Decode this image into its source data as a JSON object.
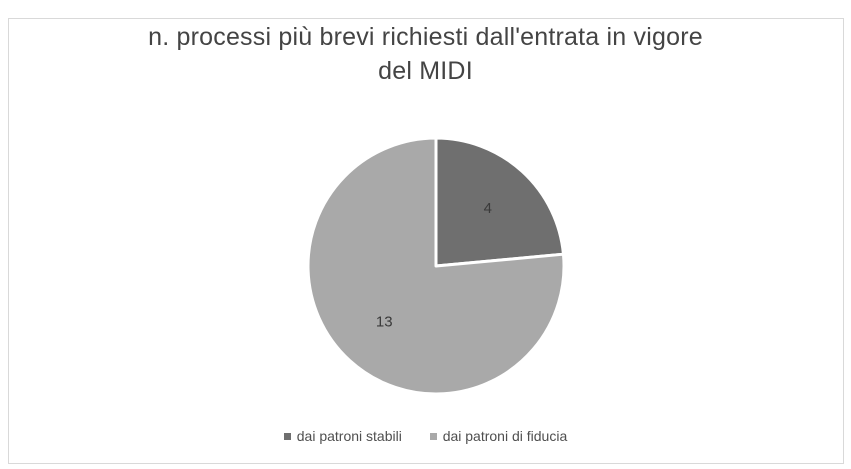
{
  "chart_data": {
    "type": "pie",
    "title_lines": [
      "n. processi più brevi richiesti dall'entrata in vigore",
      "del MIDI"
    ],
    "slices": [
      {
        "label": "dai patroni stabili",
        "value": 4,
        "data_label": "4",
        "color": "#6f6f6f"
      },
      {
        "label": "dai patroni di fiducia",
        "value": 13,
        "data_label": "13",
        "color": "#a9a9a9"
      }
    ],
    "start_angle_deg": 0,
    "direction": "clockwise",
    "legend_position": "bottom"
  }
}
